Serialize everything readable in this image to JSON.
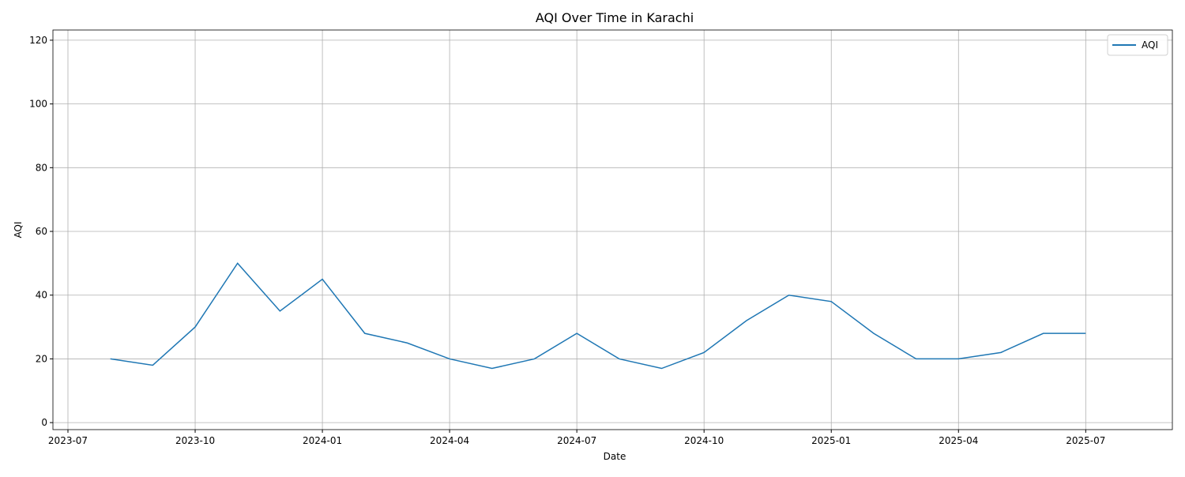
{
  "chart_data": {
    "type": "line",
    "title": "AQI Over Time in Karachi",
    "x_label": "Date",
    "y_label": "AQI",
    "x": [
      "2023-08",
      "2023-09",
      "2023-10",
      "2023-11",
      "2023-12",
      "2024-01",
      "2024-02",
      "2024-03",
      "2024-04",
      "2024-05",
      "2024-06",
      "2024-07",
      "2024-08",
      "2024-09",
      "2024-10",
      "2024-11",
      "2024-12",
      "2025-01",
      "2025-02",
      "2025-03",
      "2025-04",
      "2025-05",
      "2025-06",
      "2025-07"
    ],
    "series": [
      {
        "name": "AQI",
        "color": "#1f77b4",
        "values": [
          20,
          18,
          30,
          50,
          35,
          45,
          28,
          25,
          20,
          17,
          20,
          28,
          20,
          17,
          22,
          32,
          40,
          38,
          28,
          20,
          20,
          22,
          28,
          28
        ]
      }
    ],
    "xlim": [
      "2023-07",
      "2025-08"
    ],
    "xticks": [
      "2023-07",
      "2023-10",
      "2024-01",
      "2024-04",
      "2024-07",
      "2024-10",
      "2025-01",
      "2025-04",
      "2025-07"
    ],
    "ylim": [
      -2.2,
      123.2
    ],
    "yticks": [
      0,
      20,
      40,
      60,
      80,
      100,
      120
    ],
    "grid": true,
    "legend": "upper right"
  }
}
